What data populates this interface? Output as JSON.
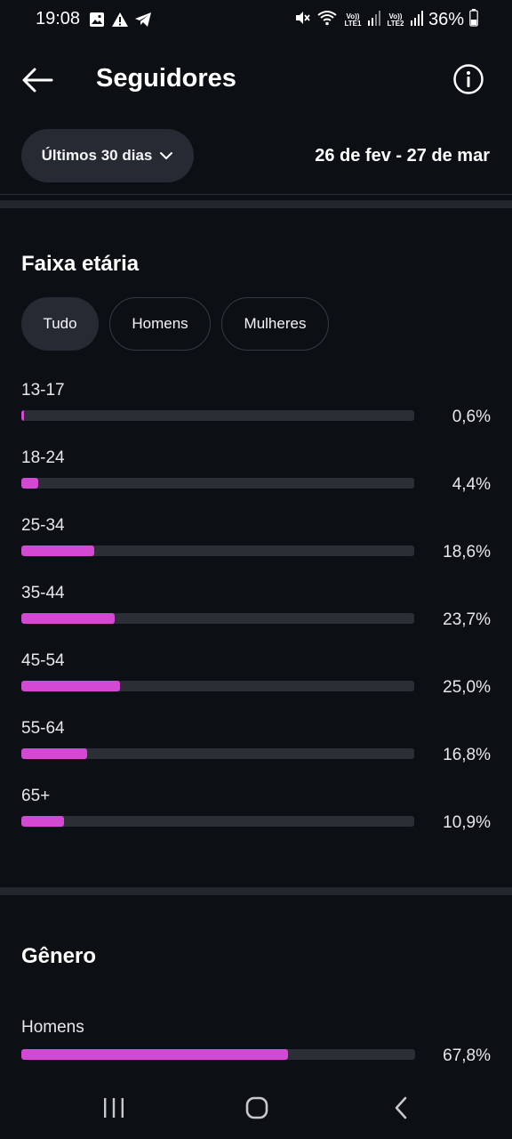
{
  "status_bar": {
    "time": "19:08",
    "battery": "36%",
    "lte1": "Vo)) LTE1",
    "lte2": "Vo)) LTE2",
    "icons": [
      "image-icon",
      "warning-icon",
      "telegram-icon",
      "mute-icon",
      "wifi-icon",
      "signal-icon",
      "battery-icon"
    ]
  },
  "header": {
    "title": "Seguidores",
    "back_icon": "arrow-left-icon",
    "info_icon": "info-icon"
  },
  "filter": {
    "range_label": "Últimos 30 dias",
    "date_range": "26 de fev - 27 de mar"
  },
  "age_section": {
    "title": "Faixa etária",
    "tabs": [
      {
        "label": "Tudo",
        "active": true
      },
      {
        "label": "Homens",
        "active": false
      },
      {
        "label": "Mulheres",
        "active": false
      }
    ],
    "rows": [
      {
        "label": "13-17",
        "value": "0,6%",
        "fraction": 0.006
      },
      {
        "label": "18-24",
        "value": "4,4%",
        "fraction": 0.044
      },
      {
        "label": "25-34",
        "value": "18,6%",
        "fraction": 0.186
      },
      {
        "label": "35-44",
        "value": "23,7%",
        "fraction": 0.237
      },
      {
        "label": "45-54",
        "value": "25,0%",
        "fraction": 0.25
      },
      {
        "label": "55-64",
        "value": "16,8%",
        "fraction": 0.168
      },
      {
        "label": "65+",
        "value": "10,9%",
        "fraction": 0.109
      }
    ]
  },
  "gender_section": {
    "title": "Gênero",
    "rows": [
      {
        "label": "Homens",
        "value": "67,8%",
        "fraction": 0.678
      }
    ]
  },
  "colors": {
    "background": "#0c0f14",
    "bar_fill": "#d449d4",
    "bar_track": "#2b2e35",
    "pill": "#262a33"
  }
}
